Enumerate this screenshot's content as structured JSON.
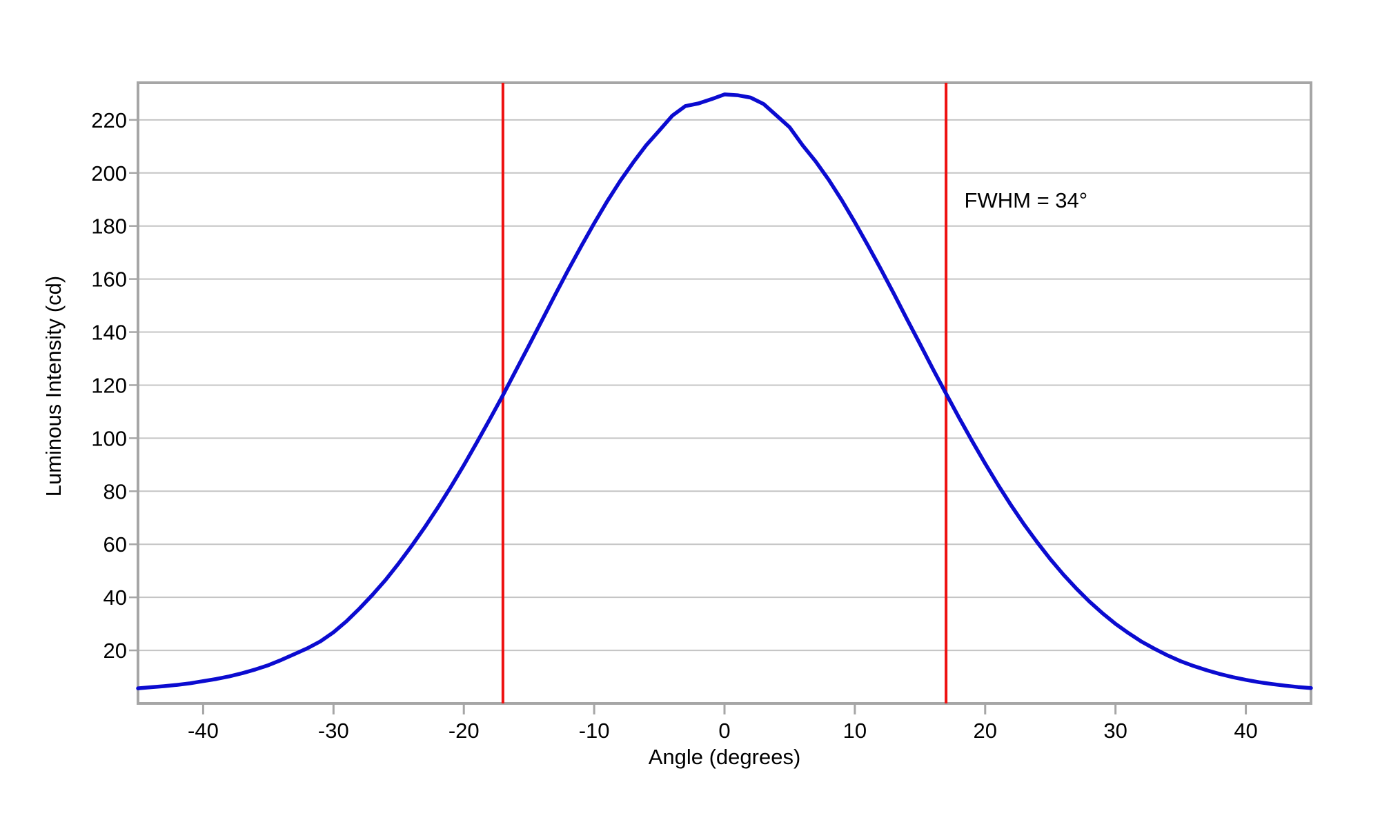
{
  "page": {
    "background": "#ffffff"
  },
  "chart_data": {
    "type": "line",
    "title": "",
    "xlabel": "Angle (degrees)",
    "ylabel": "Luminous Intensity (cd)",
    "xlim": [
      -45,
      45
    ],
    "ylim": [
      0,
      234
    ],
    "x_ticks": [
      -40,
      -30,
      -20,
      -10,
      0,
      10,
      20,
      30,
      40
    ],
    "y_ticks": [
      20,
      40,
      60,
      80,
      100,
      120,
      140,
      160,
      180,
      200,
      220
    ],
    "grid": "horizontal-only",
    "legend": "none",
    "series": [
      {
        "name": "luminous-intensity-vs-angle",
        "color": "#0b0bd0",
        "x": [
          -45,
          -44,
          -43,
          -42,
          -41,
          -40,
          -39,
          -38,
          -37,
          -36,
          -35,
          -34,
          -33,
          -32,
          -31,
          -30,
          -29,
          -28,
          -27,
          -26,
          -25,
          -24,
          -23,
          -22,
          -21,
          -20,
          -19,
          -18,
          -17,
          -16,
          -15,
          -14,
          -13,
          -12,
          -11,
          -10,
          -9,
          -8,
          -7,
          -6,
          -5,
          -4,
          -3,
          -2,
          -1,
          0,
          1,
          2,
          3,
          4,
          5,
          6,
          7,
          8,
          9,
          10,
          11,
          12,
          13,
          14,
          15,
          16,
          17,
          18,
          19,
          20,
          21,
          22,
          23,
          24,
          25,
          26,
          27,
          28,
          29,
          30,
          31,
          32,
          33,
          34,
          35,
          36,
          37,
          38,
          39,
          40,
          41,
          42,
          43,
          44,
          45
        ],
        "y": [
          5.7,
          6.1,
          6.5,
          7.0,
          7.6,
          8.4,
          9.2,
          10.2,
          11.4,
          12.8,
          14.4,
          16.4,
          18.6,
          20.8,
          23.4,
          26.8,
          31.0,
          35.8,
          41.0,
          46.6,
          52.8,
          59.4,
          66.4,
          73.8,
          81.6,
          89.8,
          98.4,
          107.2,
          116.2,
          125.6,
          135.0,
          144.5,
          154.0,
          163.3,
          172.3,
          181.0,
          189.3,
          197.0,
          204.0,
          210.5,
          216.0,
          221.6,
          225.2,
          226.2,
          227.8,
          229.6,
          229.3,
          228.4,
          226.0,
          221.6,
          217.2,
          210.4,
          204.3,
          197.4,
          189.7,
          181.4,
          172.7,
          163.7,
          154.4,
          144.9,
          135.5,
          126.0,
          116.8,
          107.7,
          98.9,
          90.4,
          82.3,
          74.6,
          67.4,
          60.7,
          54.4,
          48.6,
          43.3,
          38.4,
          34.0,
          30.0,
          26.5,
          23.3,
          20.6,
          18.1,
          15.9,
          14.1,
          12.5,
          11.1,
          9.9,
          8.9,
          8.0,
          7.3,
          6.7,
          6.2,
          5.8
        ]
      }
    ],
    "fwhm": {
      "label": "FWHM = 34°",
      "line_x": [
        -17,
        17
      ],
      "line_color": "#ee1111",
      "label_anchor": {
        "x": 18.4,
        "y": 187
      }
    }
  },
  "style": {
    "axis_color": "#a6a6a6",
    "grid_color": "#c4c4c4",
    "tick_color": "#a6a6a6",
    "curve_color": "#0b0bd0",
    "fwhm_line_color": "#ee1111",
    "text_color": "#000000"
  }
}
